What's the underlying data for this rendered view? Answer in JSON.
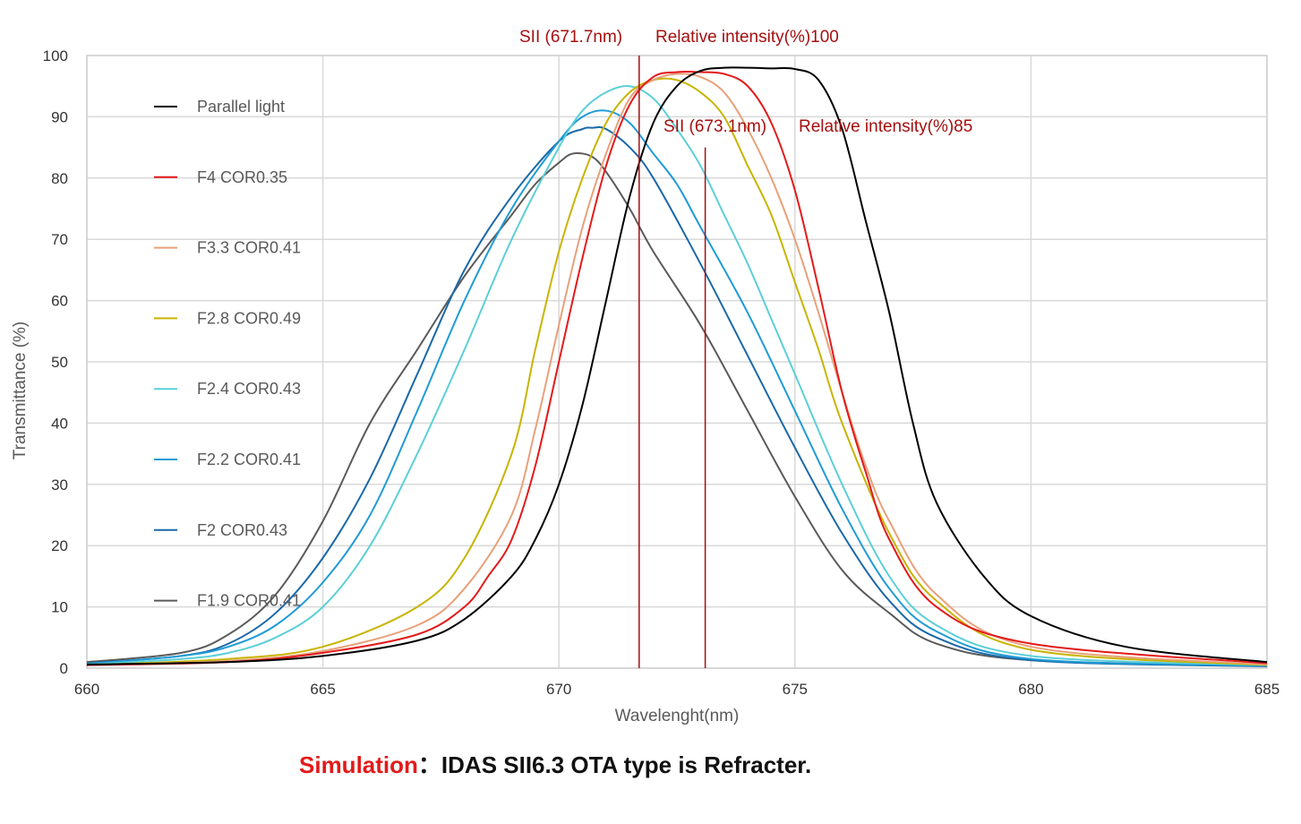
{
  "caption": {
    "label": "Simulation",
    "separator": "：",
    "text": "IDAS SII6.3  OTA type is Refracter."
  },
  "chart_data": {
    "type": "line",
    "title": "",
    "xlabel": "Wavelenght(nm)",
    "ylabel": "Transmittance (%)",
    "xlim": [
      660,
      685
    ],
    "ylim": [
      0,
      100
    ],
    "xticks": [
      660,
      665,
      670,
      675,
      680,
      685
    ],
    "yticks": [
      0,
      10,
      20,
      30,
      40,
      50,
      60,
      70,
      80,
      90,
      100
    ],
    "grid": true,
    "legend_position": "left",
    "series": [
      {
        "name": "Parallel light",
        "color": "#000000",
        "x": [
          660,
          663,
          665,
          667,
          668,
          669,
          669.5,
          670,
          670.5,
          671,
          671.5,
          672,
          672.5,
          673,
          673.5,
          674,
          674.5,
          675,
          675.5,
          676,
          676.5,
          677,
          677.5,
          678,
          679,
          680,
          682,
          685
        ],
        "y": [
          0.6,
          1.0,
          2.0,
          4.5,
          8.0,
          15.0,
          21.0,
          30.0,
          43.0,
          60.0,
          77.0,
          89.0,
          95.0,
          97.5,
          98.0,
          98.0,
          97.9,
          97.8,
          96.0,
          88.0,
          73.0,
          58.0,
          40.0,
          27.0,
          15.0,
          8.5,
          3.5,
          1.0
        ]
      },
      {
        "name": "F4 COR0.35",
        "color": "#e31a1a",
        "x": [
          660,
          663,
          665,
          667,
          668,
          668.5,
          669,
          669.5,
          670,
          670.5,
          671,
          671.5,
          672,
          672.5,
          673,
          673.5,
          674,
          674.5,
          675,
          675.5,
          676,
          676.5,
          677,
          678,
          680,
          685
        ],
        "y": [
          0.5,
          1.0,
          2.5,
          5.5,
          10.0,
          15.0,
          21.0,
          33.0,
          50.0,
          67.0,
          82.0,
          92.0,
          96.5,
          97.3,
          97.3,
          97.0,
          95.0,
          89.0,
          78.0,
          62.0,
          45.0,
          32.0,
          21.0,
          10.0,
          4.0,
          0.8
        ]
      },
      {
        "name": "F3.3 COR0.41",
        "color": "#e8a07a",
        "x": [
          660,
          663,
          665,
          667,
          668,
          669,
          669.5,
          670,
          670.5,
          671,
          671.5,
          672,
          672.5,
          673,
          673.5,
          674,
          674.5,
          675,
          675.5,
          676,
          676.5,
          677,
          678,
          680,
          685
        ],
        "y": [
          0.5,
          1.2,
          2.8,
          7.0,
          13.0,
          25.0,
          39.0,
          56.0,
          72.0,
          84.0,
          93.0,
          96.0,
          97.0,
          96.5,
          94.0,
          88.0,
          80.0,
          70.0,
          58.0,
          45.0,
          33.0,
          24.0,
          12.0,
          3.5,
          0.6
        ]
      },
      {
        "name": "F2.8 COR0.49",
        "color": "#c8b400",
        "x": [
          660,
          663,
          665,
          667,
          668,
          669,
          669.5,
          670,
          670.5,
          671,
          671.5,
          672,
          672.5,
          673,
          673.5,
          674,
          674.5,
          675,
          675.5,
          676,
          677,
          678,
          680,
          685
        ],
        "y": [
          0.5,
          1.5,
          3.5,
          10.0,
          18.0,
          35.0,
          52.0,
          68.0,
          80.0,
          89.0,
          94.0,
          96.0,
          96.0,
          94.0,
          90.0,
          82.0,
          74.0,
          63.0,
          52.0,
          40.0,
          22.0,
          11.0,
          3.0,
          0.5
        ]
      },
      {
        "name": "F2.4 COR0.43",
        "color": "#5ccfd8",
        "x": [
          660,
          662,
          663,
          664,
          665,
          666,
          667,
          668,
          669,
          670,
          670.5,
          671,
          671.5,
          672,
          672.5,
          673,
          673.5,
          674,
          674.5,
          675,
          676,
          677,
          678,
          680,
          685
        ],
        "y": [
          0.6,
          1.5,
          2.5,
          5.0,
          10.0,
          20.0,
          35.0,
          52.0,
          70.0,
          85.0,
          91.0,
          94.0,
          95.0,
          93.0,
          88.0,
          82.0,
          74.0,
          66.0,
          57.0,
          48.0,
          30.0,
          15.0,
          7.0,
          2.0,
          0.5
        ]
      },
      {
        "name": "F2.2 COR0.41",
        "color": "#1f9bd6",
        "x": [
          660,
          662,
          663,
          664,
          665,
          666,
          667,
          668,
          669,
          670,
          670.5,
          671,
          671.5,
          672,
          672.5,
          673,
          674,
          675,
          676,
          677,
          678,
          680,
          685
        ],
        "y": [
          0.7,
          2.0,
          3.5,
          7.0,
          14.0,
          25.0,
          42.0,
          60.0,
          75.0,
          86.0,
          90.0,
          91.0,
          89.0,
          84.0,
          79.0,
          72.0,
          58.0,
          42.0,
          26.0,
          13.0,
          6.0,
          1.5,
          0.4
        ]
      },
      {
        "name": "F2 COR0.43",
        "color": "#1a68a8",
        "x": [
          660,
          662,
          663,
          664,
          665,
          666,
          667,
          668,
          669,
          670,
          670.5,
          670.7,
          671,
          671.5,
          672,
          673,
          674,
          675,
          676,
          677,
          678,
          680,
          685
        ],
        "y": [
          0.8,
          2.0,
          4.0,
          9.0,
          18.0,
          31.0,
          48.0,
          65.0,
          77.0,
          86.0,
          88.0,
          88.2,
          88.0,
          85.0,
          80.0,
          66.0,
          51.0,
          36.0,
          22.0,
          11.0,
          5.0,
          1.3,
          0.3
        ]
      },
      {
        "name": "F1.9 COR0.41",
        "color": "#5a5a5a",
        "x": [
          660,
          662,
          663,
          664,
          665,
          666,
          667,
          668,
          669,
          669.5,
          670,
          670.3,
          670.7,
          671,
          671.5,
          672,
          673,
          674,
          675,
          676,
          677,
          678,
          680,
          685
        ],
        "y": [
          1.0,
          2.5,
          5.5,
          12.0,
          24.0,
          40.0,
          52.0,
          64.0,
          74.0,
          79.0,
          82.5,
          84.0,
          83.5,
          81.0,
          75.0,
          68.0,
          56.0,
          42.0,
          28.0,
          16.0,
          9.0,
          4.0,
          1.3,
          0.4
        ]
      }
    ],
    "reference_lines": [
      {
        "x": 671.7,
        "y_top": 100,
        "label": "SII (671.7nm)",
        "intensity_label": "Relative intensity(%)100",
        "color": "#a50f0f"
      },
      {
        "x": 673.1,
        "y_top": 85,
        "label": "SII (673.1nm)",
        "intensity_label": "Relative intensity(%)85",
        "color": "#a50f0f"
      }
    ]
  }
}
